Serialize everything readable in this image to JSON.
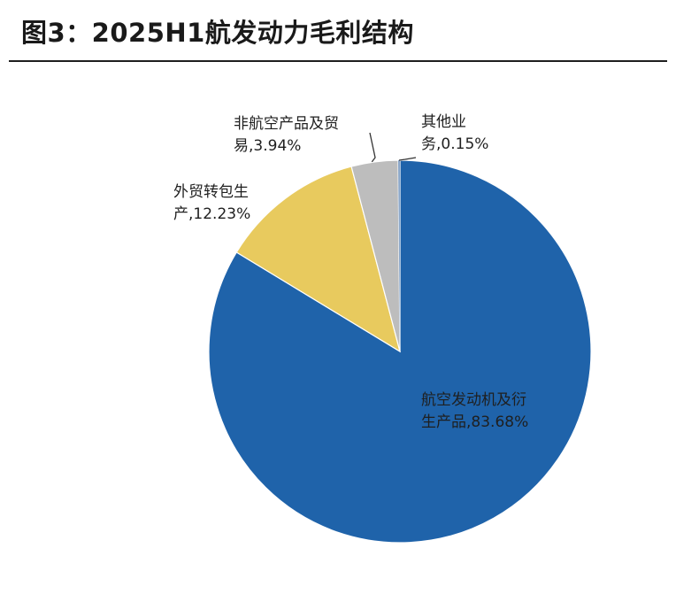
{
  "header": {
    "title": "图3：2025H1航发动力毛利结构"
  },
  "chart_data": {
    "type": "pie",
    "title": "",
    "categories": [
      "航空发动机及衍生产品",
      "外贸转包生产",
      "非航空产品及贸易",
      "其他业务"
    ],
    "values": [
      83.68,
      12.23,
      3.94,
      0.15
    ],
    "colors": [
      "#1f63aa",
      "#e8ca5e",
      "#bdbdbd",
      "#8aa6c8"
    ],
    "labels": [
      {
        "line1": "航空发动机及衍",
        "line2": "生产品,83.68%"
      },
      {
        "line1": "外贸转包生",
        "line2": "产,12.23%"
      },
      {
        "line1": "非航空产品及贸",
        "line2": "易,3.94%"
      },
      {
        "line1": "其他业",
        "line2": "务,0.15%"
      }
    ],
    "legend": "none",
    "start_angle": "12 o'clock",
    "direction": "clockwise"
  }
}
